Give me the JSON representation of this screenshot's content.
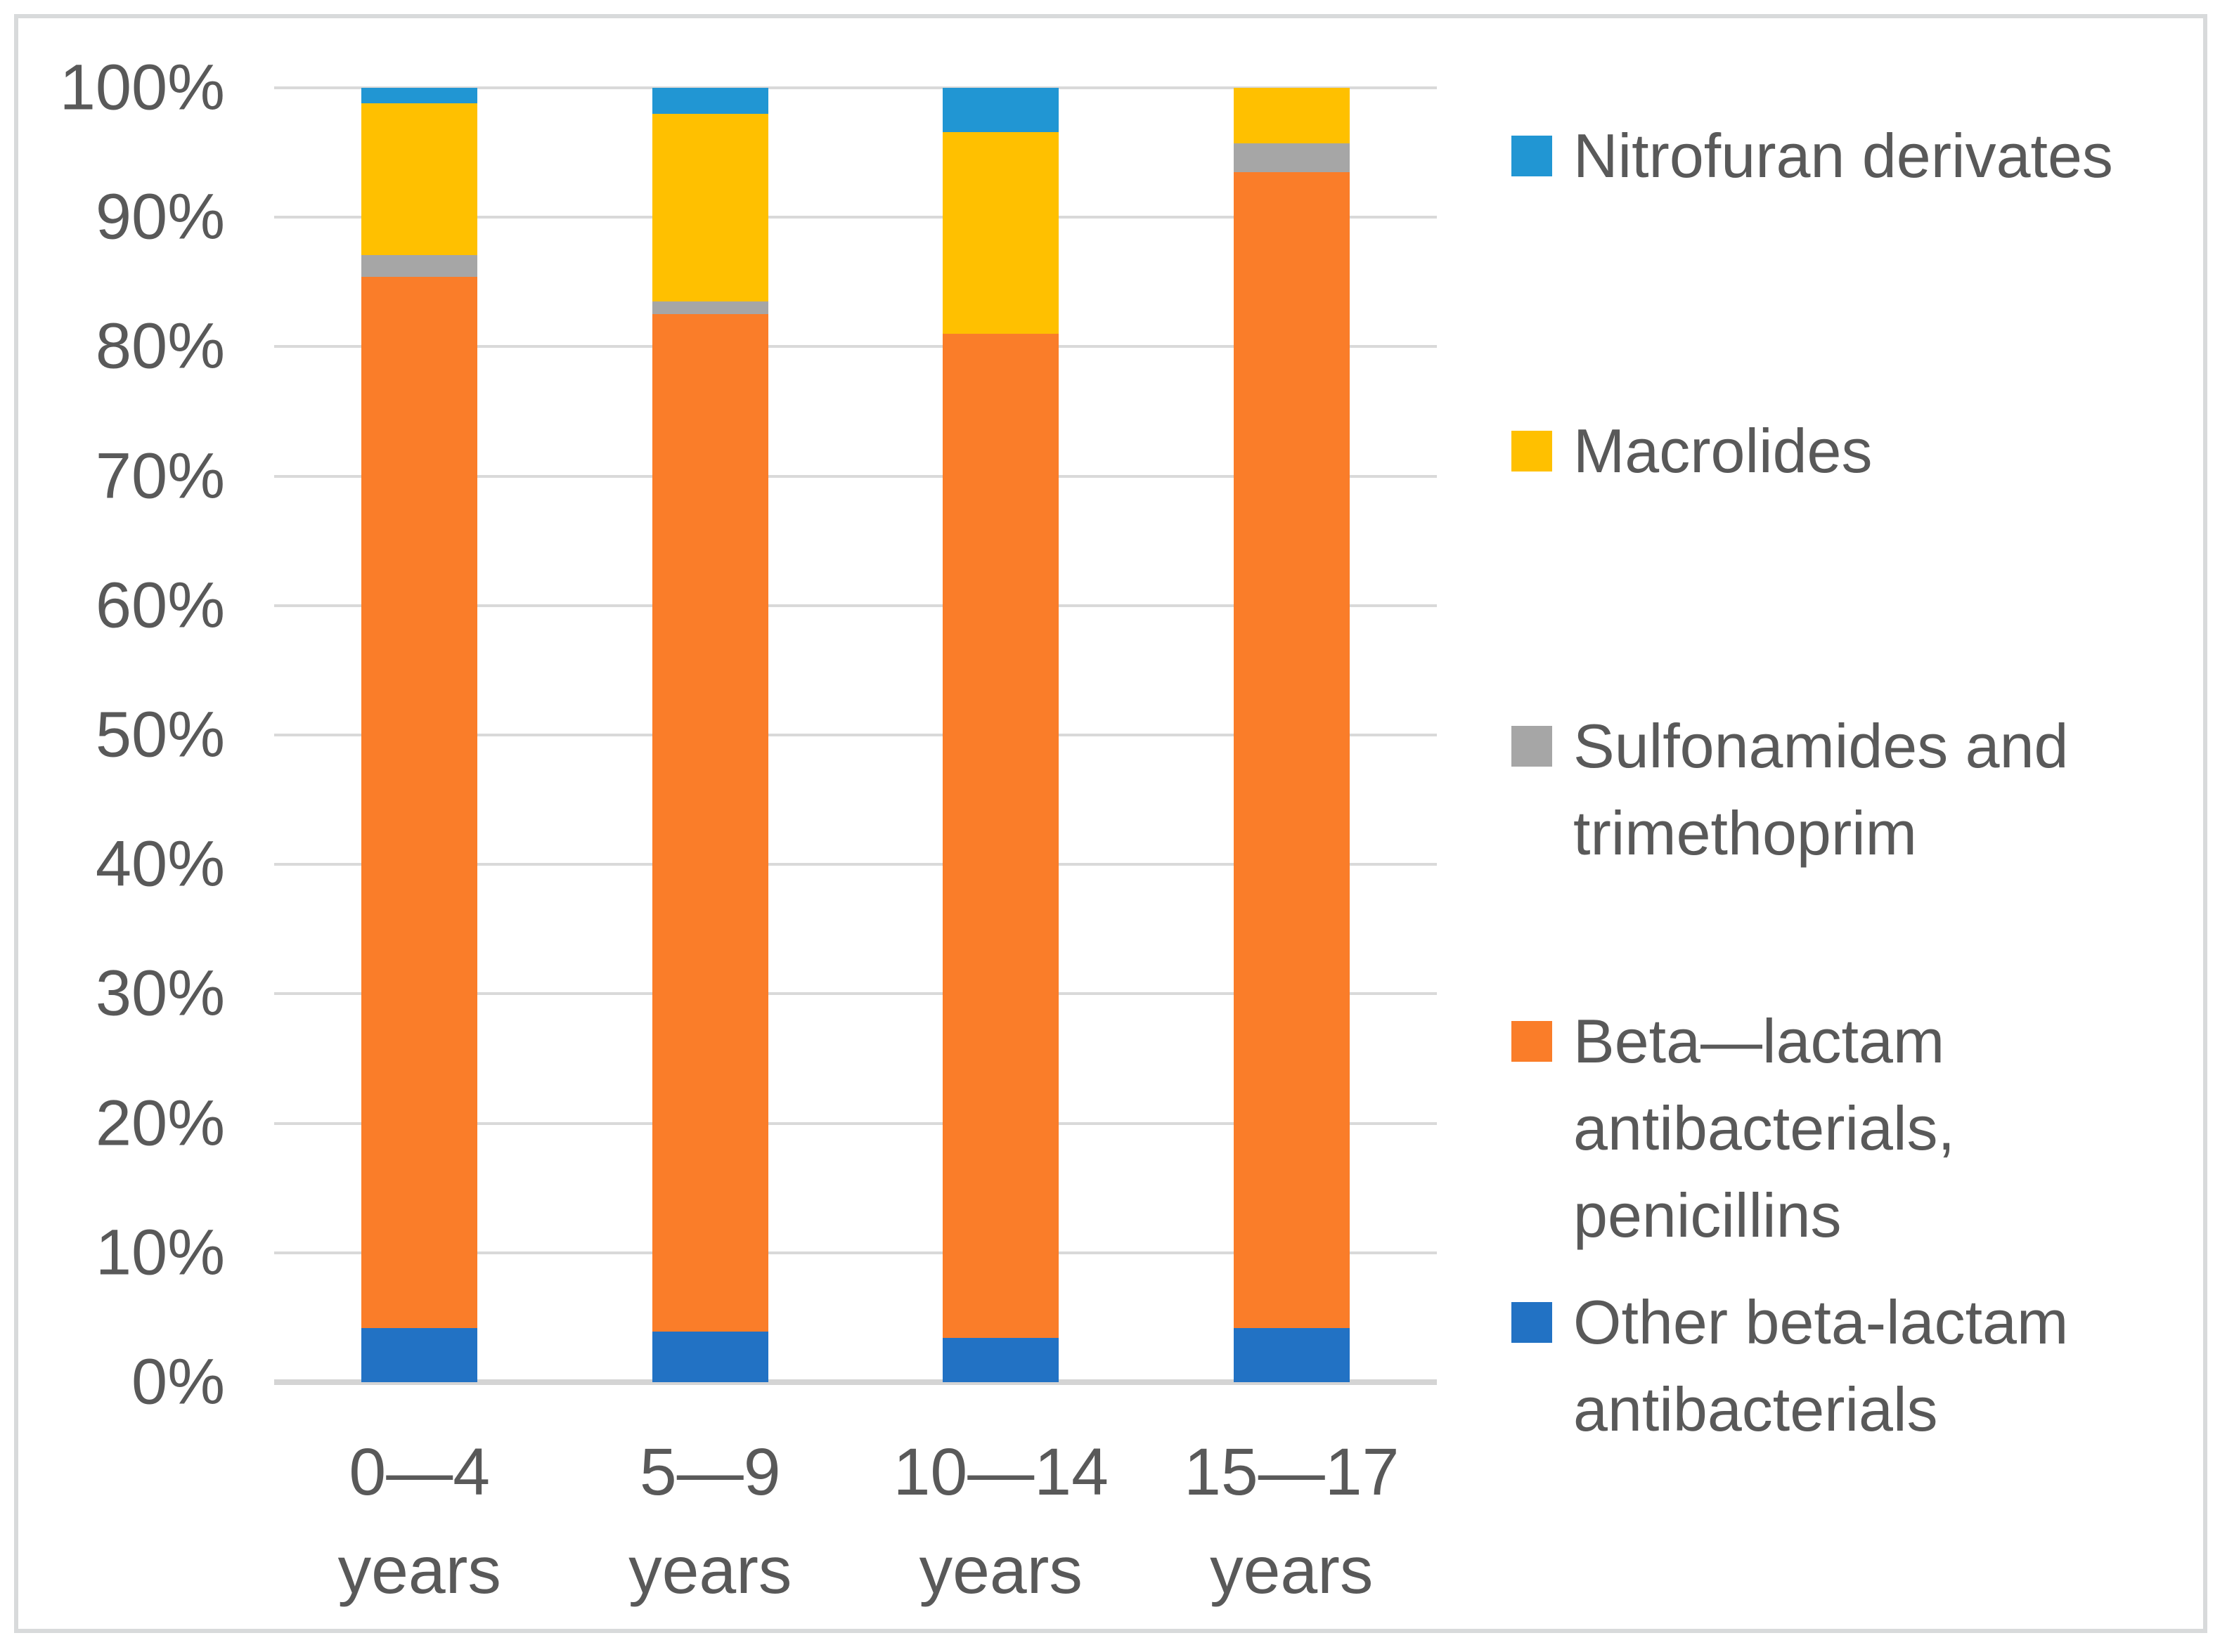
{
  "chart_data": {
    "type": "bar",
    "variant": "stacked-100-percent",
    "title": "",
    "xlabel": "",
    "ylabel": "",
    "categories": [
      {
        "line1": "0—4",
        "line2": "years"
      },
      {
        "line1": "5—9",
        "line2": "years"
      },
      {
        "line1": "10—14",
        "line2": "years"
      },
      {
        "line1": "15—17",
        "line2": "years"
      }
    ],
    "series_bottom_to_top": [
      {
        "name": "Other beta-lactam antibacterials",
        "color": "#2272C4",
        "values": [
          4.2,
          3.9,
          3.4,
          4.2
        ]
      },
      {
        "name": "Beta—lactam antibacterials, penicillins",
        "color": "#FA7D29",
        "values": [
          81.2,
          78.6,
          77.6,
          89.3
        ]
      },
      {
        "name": "Sulfonamides and trimethoprim",
        "color": "#A6A6A6",
        "values": [
          1.7,
          1.0,
          0.0,
          2.2
        ]
      },
      {
        "name": "Macrolides",
        "color": "#FFC000",
        "values": [
          11.7,
          14.5,
          15.6,
          4.3
        ]
      },
      {
        "name": "Nitrofuran derivates",
        "color": "#2196D3",
        "values": [
          1.2,
          2.0,
          3.4,
          0.0
        ]
      }
    ],
    "y_axis": {
      "min": 0,
      "max": 100,
      "tick_labels": [
        "100%",
        "90%",
        "80%",
        "70%",
        "60%",
        "50%",
        "40%",
        "30%",
        "20%",
        "10%",
        "0%"
      ],
      "gridlines": true
    },
    "legend": {
      "position": "right",
      "items_top_to_bottom": [
        "Nitrofuran derivates",
        "Macrolides",
        "Sulfonamides and trimethoprim",
        "Beta—lactam antibacterials, penicillins",
        "Other beta-lactam antibacterials"
      ]
    },
    "colors": {
      "grid": "#D9D9D9",
      "axis_text": "#595959",
      "frame_border": "#D8DADB",
      "background": "#FFFFFF"
    }
  }
}
